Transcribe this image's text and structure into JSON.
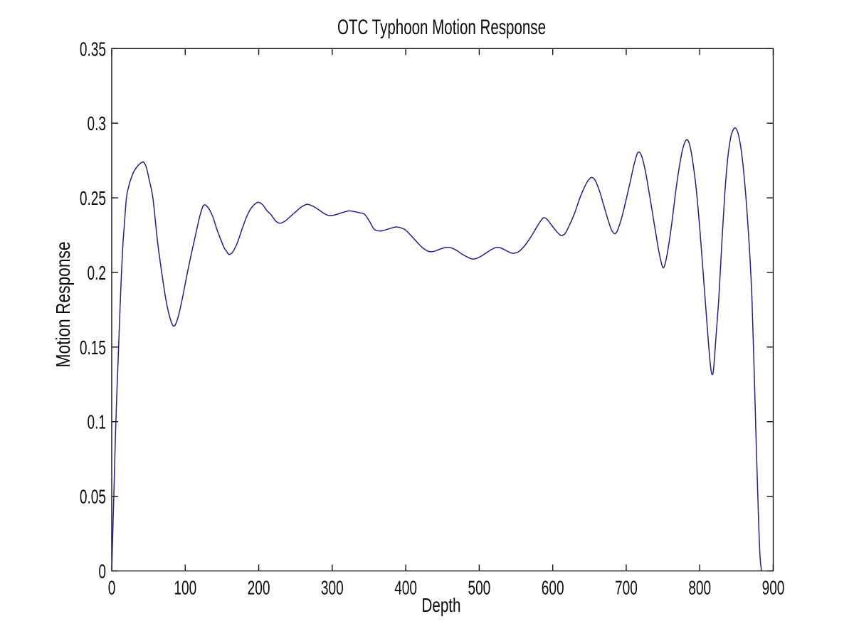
{
  "window": {
    "background_color": "#ffffff"
  },
  "chart_data": {
    "type": "line",
    "title": "OTC Typhoon Motion Response",
    "xlabel": "Depth",
    "ylabel": "Motion Response",
    "xlim": [
      0,
      900
    ],
    "ylim": [
      0,
      0.35
    ],
    "grid": "off",
    "legend": "none",
    "box": "on",
    "tick_direction": "in",
    "line_color": "#21218c",
    "axis_color": "#111111",
    "text_color": "#0b0b0b",
    "x_ticks": {
      "values": [
        0,
        100,
        200,
        300,
        400,
        500,
        600,
        700,
        800,
        900
      ],
      "labels": [
        "0",
        "100",
        "200",
        "300",
        "400",
        "500",
        "600",
        "700",
        "800",
        "900"
      ]
    },
    "y_ticks": {
      "values": [
        0,
        0.05,
        0.1,
        0.15,
        0.2,
        0.25,
        0.3,
        0.35
      ],
      "labels": [
        "0",
        "0.05",
        "0.1",
        "0.15",
        "0.2",
        "0.25",
        "0.3",
        "0.35"
      ]
    },
    "series": [
      {
        "name": "Motion Response",
        "x": [
          0,
          1.5,
          3,
          5,
          7,
          9,
          11,
          13,
          15,
          17,
          20,
          23,
          26,
          30,
          34,
          38,
          43,
          47,
          51,
          56,
          62,
          68,
          74,
          79,
          84,
          89,
          95,
          103,
          109,
          114,
          120,
          125,
          131,
          137,
          143,
          148,
          153,
          157,
          160,
          165,
          171,
          178,
          185,
          192,
          199,
          205,
          211,
          217,
          223,
          229,
          236,
          243,
          250,
          257,
          262,
          266,
          271,
          277,
          283,
          290,
          296,
          303,
          310,
          317,
          323,
          330,
          337,
          344,
          351,
          357,
          364,
          370,
          377,
          383,
          388,
          394,
          400,
          408,
          415,
          422,
          428,
          433,
          439,
          445,
          451,
          457,
          463,
          470,
          477,
          484,
          491,
          497,
          504,
          511,
          518,
          524,
          530,
          536,
          541,
          546,
          552,
          558,
          565,
          572,
          579,
          584,
          588,
          593,
          598,
          604,
          609,
          612,
          617,
          623,
          630,
          637,
          643,
          648,
          653,
          658,
          664,
          670,
          676,
          680,
          684,
          688,
          694,
          700,
          706,
          711,
          716,
          721,
          726,
          731,
          737,
          743,
          747,
          750,
          753,
          757,
          762,
          767,
          772,
          777,
          782,
          786,
          790,
          795,
          800,
          804,
          808,
          812,
          815,
          817,
          819,
          822,
          826,
          830,
          834,
          838,
          842,
          845,
          848,
          852,
          856,
          860,
          864,
          868,
          871,
          874,
          877,
          880,
          882,
          884
        ],
        "y": [
          0,
          0.027,
          0.053,
          0.09,
          0.12,
          0.145,
          0.172,
          0.197,
          0.217,
          0.231,
          0.25,
          0.2575,
          0.2625,
          0.2675,
          0.2705,
          0.2727,
          0.274,
          0.2705,
          0.262,
          0.25,
          0.222,
          0.2,
          0.181,
          0.17,
          0.164,
          0.168,
          0.18,
          0.2,
          0.214,
          0.225,
          0.238,
          0.245,
          0.2435,
          0.238,
          0.229,
          0.2225,
          0.2165,
          0.2135,
          0.212,
          0.214,
          0.22,
          0.23,
          0.239,
          0.2445,
          0.247,
          0.2455,
          0.2415,
          0.2385,
          0.2345,
          0.233,
          0.2345,
          0.2375,
          0.2405,
          0.2435,
          0.245,
          0.2457,
          0.245,
          0.2435,
          0.2415,
          0.2392,
          0.2381,
          0.2385,
          0.2395,
          0.2406,
          0.2413,
          0.2408,
          0.24,
          0.239,
          0.234,
          0.229,
          0.2278,
          0.2282,
          0.2292,
          0.2301,
          0.2305,
          0.2298,
          0.2283,
          0.2243,
          0.2205,
          0.217,
          0.2148,
          0.2139,
          0.2142,
          0.2153,
          0.2163,
          0.2169,
          0.2163,
          0.2145,
          0.2122,
          0.2103,
          0.209,
          0.2095,
          0.2113,
          0.2136,
          0.2157,
          0.2169,
          0.2163,
          0.2148,
          0.2136,
          0.2128,
          0.2135,
          0.2158,
          0.22,
          0.2252,
          0.231,
          0.2348,
          0.2367,
          0.2352,
          0.232,
          0.2282,
          0.2255,
          0.2247,
          0.2262,
          0.232,
          0.24,
          0.25,
          0.257,
          0.2615,
          0.2637,
          0.2615,
          0.254,
          0.244,
          0.234,
          0.2285,
          0.226,
          0.228,
          0.237,
          0.249,
          0.262,
          0.273,
          0.2805,
          0.278,
          0.268,
          0.254,
          0.236,
          0.218,
          0.208,
          0.2032,
          0.206,
          0.216,
          0.233,
          0.253,
          0.27,
          0.283,
          0.2889,
          0.286,
          0.276,
          0.257,
          0.23,
          0.204,
          0.178,
          0.152,
          0.136,
          0.1315,
          0.136,
          0.156,
          0.183,
          0.219,
          0.252,
          0.276,
          0.29,
          0.295,
          0.2969,
          0.2935,
          0.2835,
          0.2665,
          0.243,
          0.213,
          0.183,
          0.135,
          0.083,
          0.035,
          0.01,
          0
        ]
      }
    ]
  }
}
